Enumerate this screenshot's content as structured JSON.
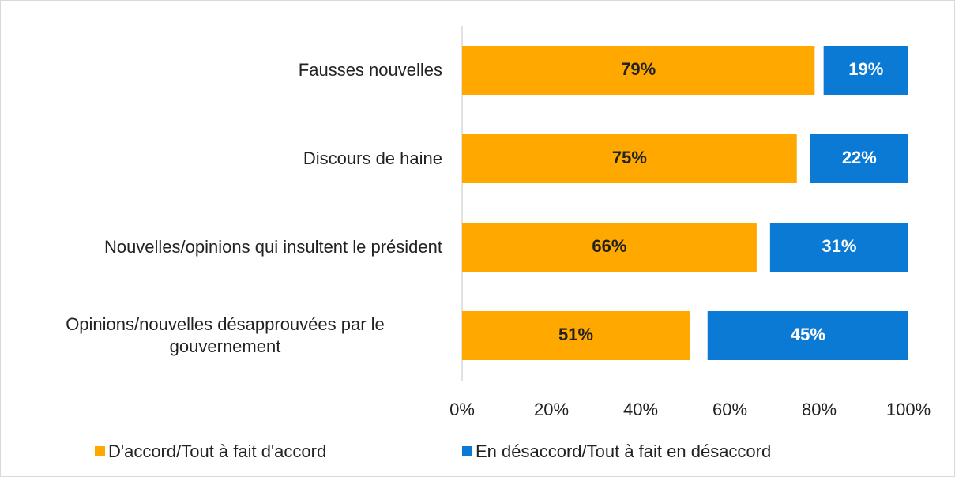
{
  "chart_data": {
    "type": "bar",
    "orientation": "horizontal",
    "categories": [
      "Fausses nouvelles",
      "Discours de haine",
      "Nouvelles/opinions qui insultent le président",
      "Opinions/nouvelles désapprouvées par le gouvernement"
    ],
    "series": [
      {
        "name": "D'accord/Tout à fait d'accord",
        "color": "#ffa800",
        "values": [
          79,
          75,
          66,
          51
        ],
        "value_labels": [
          "79%",
          "75%",
          "66%",
          "51%"
        ]
      },
      {
        "name": "En désaccord/Tout à fait en désaccord",
        "color": "#0a7ad4",
        "values": [
          19,
          22,
          31,
          45
        ],
        "value_labels": [
          "19%",
          "22%",
          "31%",
          "45%"
        ]
      }
    ],
    "xlim": [
      0,
      100
    ],
    "xticks": [
      {
        "value": 0,
        "label": "0%"
      },
      {
        "value": 20,
        "label": "20%"
      },
      {
        "value": 40,
        "label": "40%"
      },
      {
        "value": 60,
        "label": "60%"
      },
      {
        "value": 80,
        "label": "80%"
      },
      {
        "value": 100,
        "label": "100%"
      }
    ],
    "legend": "bottom"
  }
}
